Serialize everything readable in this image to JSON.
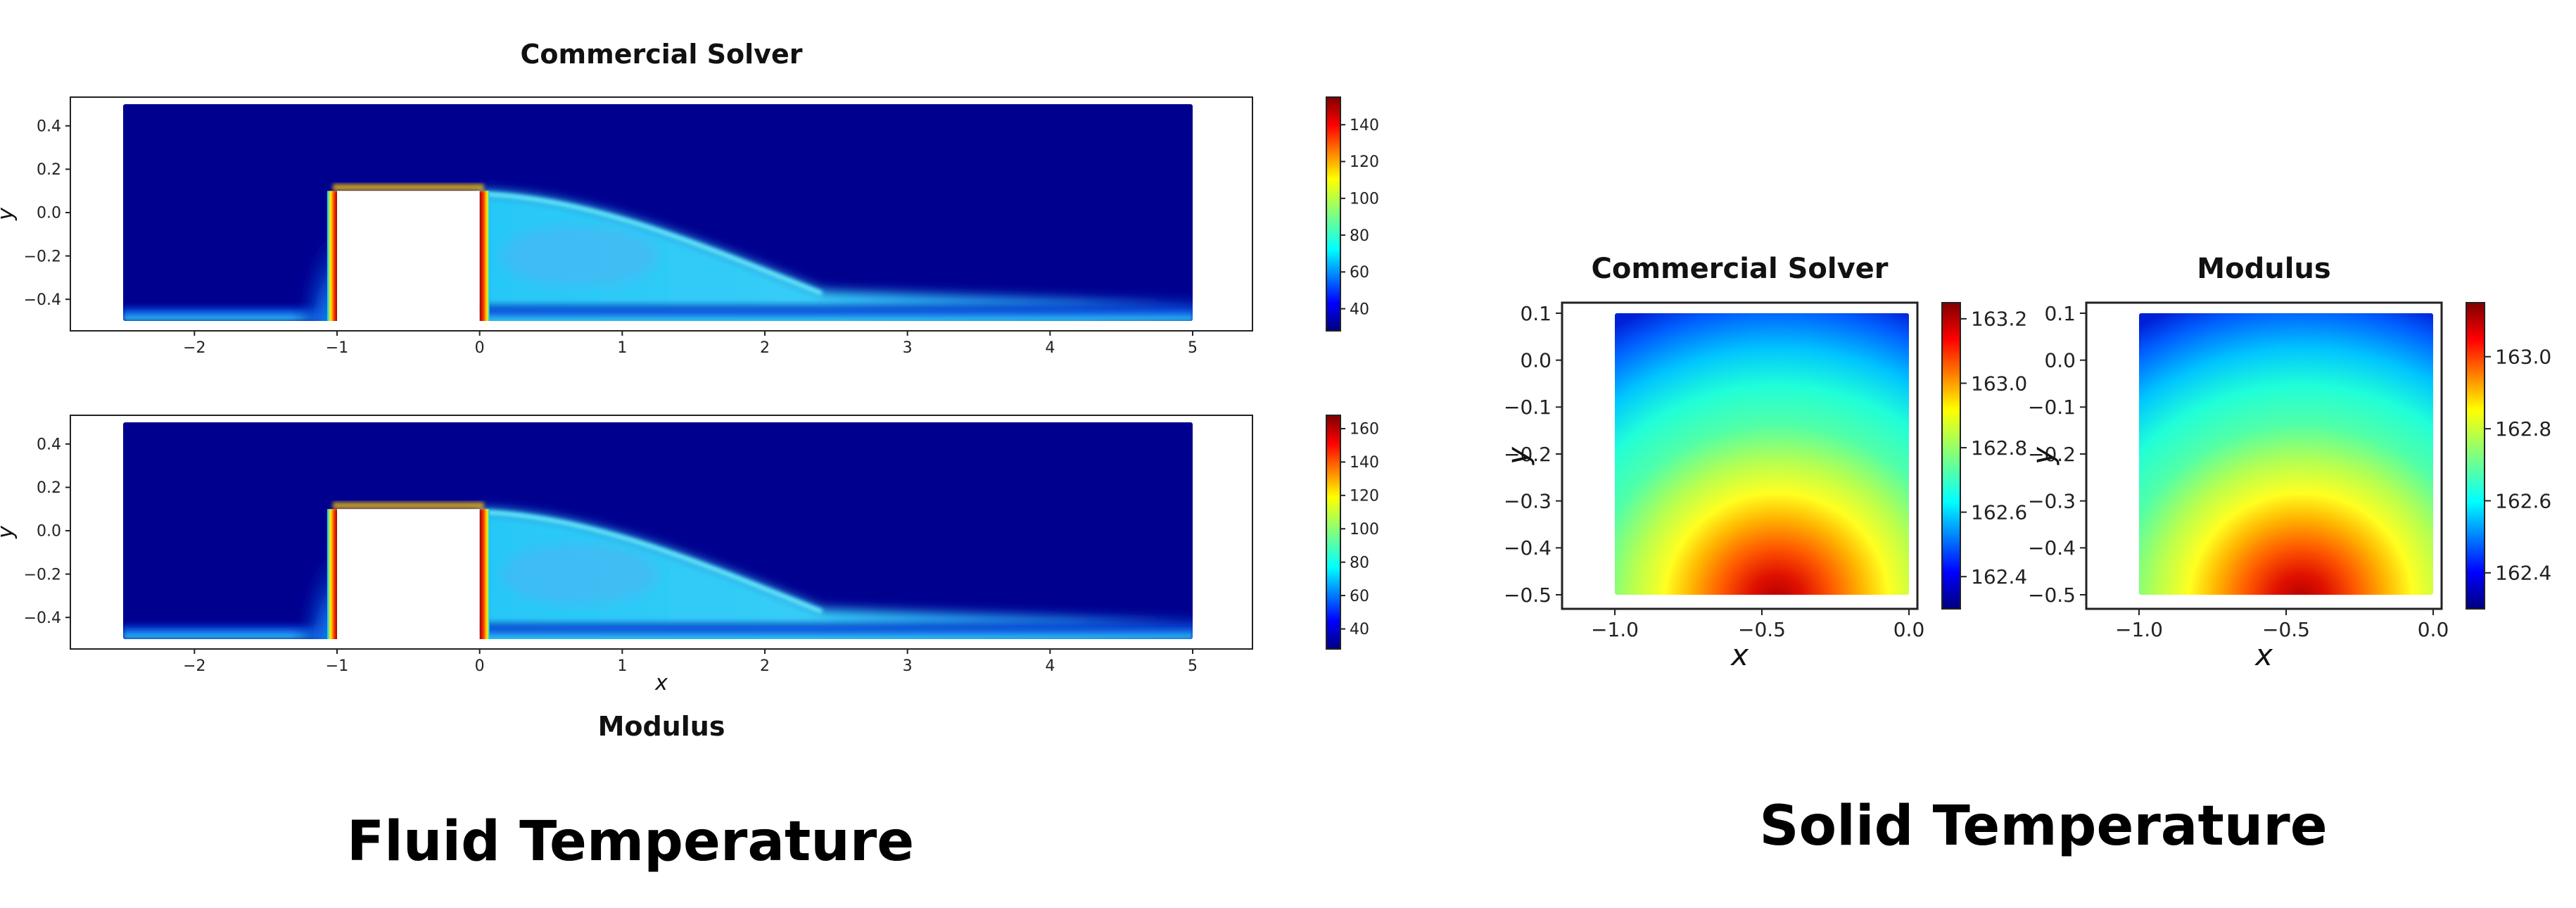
{
  "captions": {
    "fluid": "Fluid Temperature",
    "solid": "Solid Temperature"
  },
  "chart_data": [
    {
      "type": "heatmap",
      "title": "Commercial Solver",
      "xlabel": "",
      "ylabel": "y",
      "xlim": [
        -2.5,
        5
      ],
      "ylim": [
        -0.5,
        0.5
      ],
      "x_ticks": [
        -2,
        -1,
        0,
        1,
        2,
        3,
        4,
        5
      ],
      "y_ticks": [
        0.4,
        0.2,
        0.0,
        -0.2,
        -0.4
      ],
      "obstacle": {
        "x": [
          -1,
          0
        ],
        "y": [
          -0.5,
          0.1
        ]
      },
      "colorbar": {
        "min": 28,
        "max": 155,
        "ticks": [
          40,
          60,
          80,
          100,
          120,
          140
        ]
      },
      "colormap": "jet"
    },
    {
      "type": "heatmap",
      "title": "Modulus",
      "xlabel": "x",
      "ylabel": "y",
      "xlim": [
        -2.5,
        5
      ],
      "ylim": [
        -0.5,
        0.5
      ],
      "x_ticks": [
        -2,
        -1,
        0,
        1,
        2,
        3,
        4,
        5
      ],
      "y_ticks": [
        0.4,
        0.2,
        0.0,
        -0.2,
        -0.4
      ],
      "obstacle": {
        "x": [
          -1,
          0
        ],
        "y": [
          -0.5,
          0.1
        ]
      },
      "colorbar": {
        "min": 28,
        "max": 168,
        "ticks": [
          40,
          60,
          80,
          100,
          120,
          140,
          160
        ]
      },
      "colormap": "jet"
    },
    {
      "type": "heatmap",
      "title": "Commercial Solver",
      "xlabel": "x",
      "ylabel": "y",
      "xlim": [
        -1.0,
        0.0
      ],
      "ylim": [
        -0.5,
        0.1
      ],
      "x_ticks": [
        -1.0,
        -0.5,
        0.0
      ],
      "y_ticks": [
        0.1,
        0.0,
        -0.1,
        -0.2,
        -0.3,
        -0.4,
        -0.5
      ],
      "colorbar": {
        "min": 162.3,
        "max": 163.25,
        "ticks": [
          162.4,
          162.6,
          162.8,
          163.0,
          163.2
        ]
      },
      "colormap": "jet"
    },
    {
      "type": "heatmap",
      "title": "Modulus",
      "xlabel": "x",
      "ylabel": "y",
      "xlim": [
        -1.0,
        0.0
      ],
      "ylim": [
        -0.5,
        0.1
      ],
      "x_ticks": [
        -1.0,
        -0.5,
        0.0
      ],
      "y_ticks": [
        0.1,
        0.0,
        -0.1,
        -0.2,
        -0.3,
        -0.4,
        -0.5
      ],
      "colorbar": {
        "min": 162.3,
        "max": 163.15,
        "ticks": [
          162.4,
          162.6,
          162.8,
          163.0
        ]
      },
      "colormap": "jet"
    }
  ]
}
